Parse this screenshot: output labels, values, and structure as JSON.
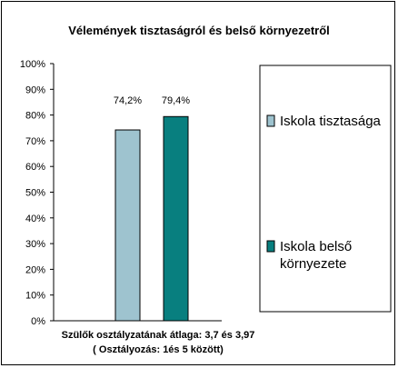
{
  "chart_data": {
    "type": "bar",
    "title": "Vélemények tisztaságról és belső környezetről",
    "xlabel": "Szülők osztályzatának átlaga: 3,7 és 3,97",
    "xlabel2": "( Osztályozás: 1és 5 között)",
    "ylabel": "",
    "ylim": [
      0,
      100
    ],
    "yticks": [
      "0%",
      "10%",
      "20%",
      "30%",
      "40%",
      "50%",
      "60%",
      "70%",
      "80%",
      "90%",
      "100%"
    ],
    "grid": false,
    "legend_position": "right",
    "series": [
      {
        "name": "Iskola tisztasága",
        "name_lines": [
          "Iskola tisztasága"
        ],
        "value": 74.2,
        "label": "74,2%",
        "color": "#9ec3cf"
      },
      {
        "name": "Iskola belső környezete",
        "name_lines": [
          "Iskola belső",
          "környezete"
        ],
        "value": 79.4,
        "label": "79,4%",
        "color": "#087f7f"
      }
    ]
  }
}
